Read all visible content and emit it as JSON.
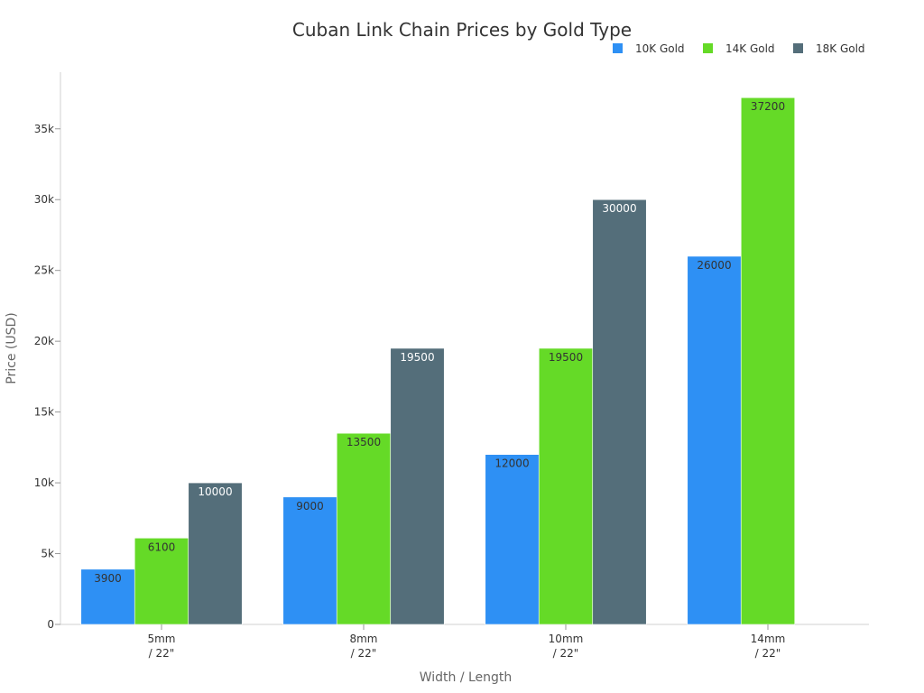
{
  "chart_data": {
    "type": "bar",
    "title": "Cuban Link Chain Prices by Gold Type",
    "xlabel": "Width / Length",
    "ylabel": "Price (USD)",
    "categories": [
      [
        "5mm",
        "/ 22\""
      ],
      [
        "8mm",
        "/ 22\""
      ],
      [
        "10mm",
        "/ 22\""
      ],
      [
        "14mm",
        "/ 22\""
      ]
    ],
    "series": [
      {
        "name": "10K Gold",
        "color": "#2E90F4",
        "label_color": "#333333",
        "values": [
          3900,
          9000,
          12000,
          26000
        ]
      },
      {
        "name": "14K Gold",
        "color": "#65DA27",
        "label_color": "#333333",
        "values": [
          6100,
          13500,
          19500,
          37200
        ]
      },
      {
        "name": "18K Gold",
        "color": "#546E7A",
        "label_color": "#ffffff",
        "values": [
          10000,
          19500,
          30000,
          null
        ]
      }
    ],
    "ylim": [
      0,
      39000
    ],
    "yticks": [
      0,
      5000,
      10000,
      15000,
      20000,
      25000,
      30000,
      35000
    ],
    "ytick_labels": [
      "0",
      "5k",
      "10k",
      "15k",
      "20k",
      "25k",
      "30k",
      "35k"
    ],
    "legend_position": "top-right",
    "grid": false
  }
}
